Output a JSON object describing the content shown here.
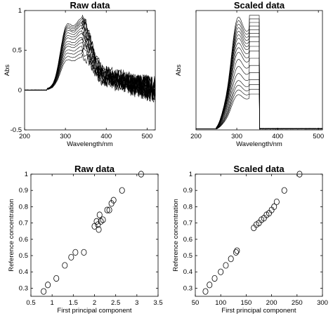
{
  "chart_data": [
    {
      "id": "p1",
      "type": "line",
      "title": "Raw data",
      "xlabel": "Wavelength/nm",
      "ylabel": "Abs",
      "xlim": [
        200,
        520
      ],
      "ylim": [
        -0.5,
        1
      ],
      "xticks": [
        200,
        300,
        400,
        500
      ],
      "xtick_labels": [
        "200",
        "300",
        "400",
        "500"
      ],
      "yticks": [
        -0.5,
        0,
        0.5,
        1
      ],
      "ytick_labels": [
        "-0.5",
        "0",
        "0.5",
        "1"
      ],
      "grid": false,
      "legend": "none",
      "line_color": "#000000",
      "series_peaks": [
        0.79,
        0.77,
        0.75,
        0.73,
        0.71,
        0.68,
        0.65,
        0.62,
        0.58,
        0.55,
        0.52,
        0.48,
        0.44,
        0.4,
        0.36
      ]
    },
    {
      "id": "p2",
      "type": "line",
      "title": "Scaled data",
      "xlabel": "Wavelength/nm",
      "ylabel": "Abs",
      "xlim": [
        200,
        510
      ],
      "ylim": [
        0,
        1
      ],
      "xticks": [
        200,
        300,
        400,
        500
      ],
      "xtick_labels": [
        "200",
        "300",
        "400",
        "500"
      ],
      "yticks": [],
      "ytick_labels": [],
      "grid": false,
      "legend": "none",
      "line_color": "#000000",
      "cutoff_nm": 355,
      "series_peaks": [
        0.96,
        0.93,
        0.9,
        0.87,
        0.84,
        0.81,
        0.78,
        0.74,
        0.7,
        0.66,
        0.6,
        0.54,
        0.48,
        0.42,
        0.38,
        0.34,
        0.3
      ]
    },
    {
      "id": "p3",
      "type": "scatter",
      "title": "Raw data",
      "xlabel": "First principal component",
      "ylabel": "Reference concentration",
      "xlim": [
        0.5,
        3.5
      ],
      "ylim": [
        0.25,
        1
      ],
      "xticks": [
        0.5,
        1,
        1.5,
        2,
        2.5,
        3,
        3.5
      ],
      "xtick_labels": [
        "0.5",
        "1",
        "1.5",
        "2",
        "2.5",
        "3",
        "3.5"
      ],
      "yticks": [
        0.3,
        0.4,
        0.5,
        0.6,
        0.7,
        0.8,
        0.9,
        1
      ],
      "ytick_labels": [
        "0.3",
        "0.4",
        "0.5",
        "0.6",
        "0.7",
        "0.8",
        "0.9",
        "1"
      ],
      "grid": false,
      "legend": "none",
      "marker": "open-circle",
      "x": [
        0.8,
        0.9,
        1.1,
        1.3,
        1.45,
        1.55,
        1.75,
        2.0,
        2.05,
        2.08,
        2.1,
        2.12,
        2.15,
        2.2,
        2.3,
        2.35,
        2.4,
        2.45,
        2.65,
        3.1
      ],
      "y": [
        0.28,
        0.32,
        0.36,
        0.44,
        0.49,
        0.52,
        0.52,
        0.68,
        0.71,
        0.69,
        0.66,
        0.75,
        0.71,
        0.72,
        0.78,
        0.78,
        0.82,
        0.84,
        0.9,
        1.0
      ]
    },
    {
      "id": "p4",
      "type": "scatter",
      "title": "Scaled data",
      "xlabel": "First principal component",
      "ylabel": "Reference concentration",
      "xlim": [
        50,
        300
      ],
      "ylim": [
        0.25,
        1
      ],
      "xticks": [
        50,
        100,
        150,
        200,
        250,
        300
      ],
      "xtick_labels": [
        "50",
        "100",
        "150",
        "200",
        "250",
        "300"
      ],
      "yticks": [
        0.3,
        0.4,
        0.5,
        0.6,
        0.7,
        0.8,
        0.9,
        1
      ],
      "ytick_labels": [
        "0.3",
        "0.4",
        "0.5",
        "0.6",
        "0.7",
        "0.8",
        "0.9",
        "1"
      ],
      "grid": false,
      "legend": "none",
      "marker": "open-circle",
      "x": [
        70,
        78,
        88,
        100,
        110,
        120,
        130,
        132,
        165,
        170,
        175,
        180,
        185,
        190,
        195,
        200,
        205,
        210,
        225,
        255
      ],
      "y": [
        0.28,
        0.32,
        0.36,
        0.4,
        0.44,
        0.48,
        0.52,
        0.53,
        0.67,
        0.69,
        0.7,
        0.72,
        0.73,
        0.75,
        0.76,
        0.78,
        0.8,
        0.83,
        0.9,
        1.0
      ]
    }
  ]
}
